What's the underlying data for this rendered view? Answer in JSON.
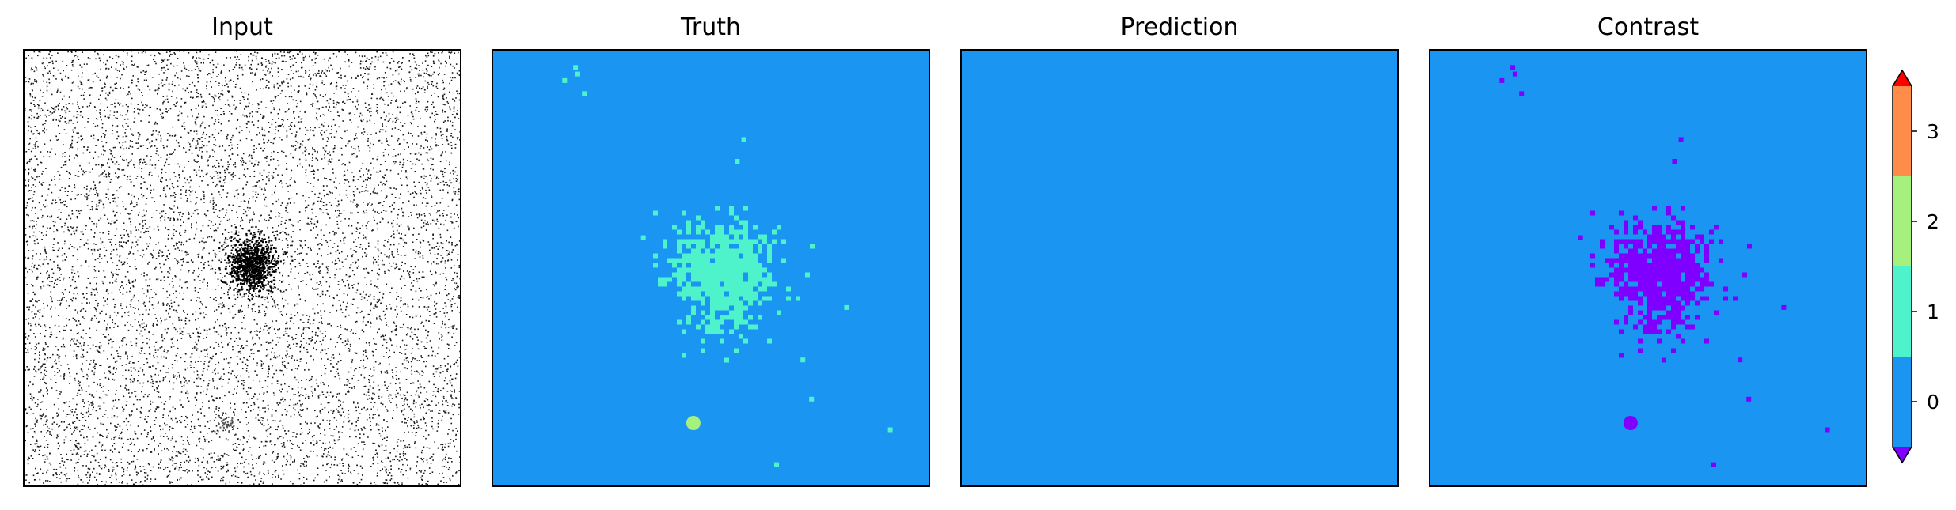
{
  "figure": {
    "panels": [
      {
        "title": "Input"
      },
      {
        "title": "Truth"
      },
      {
        "title": "Prediction"
      },
      {
        "title": "Contrast"
      }
    ]
  },
  "colors": {
    "background": "#1b95f2",
    "class1": "#4ef2cb",
    "class2": "#a6f07e",
    "class3": "#ff8c48",
    "contrast_mark": "#8000ff",
    "over": "#ff0000",
    "under": "#8000ff",
    "axes_edge": "#000000",
    "noise_dot": "#1a1a1a"
  },
  "chart_data": [
    {
      "type": "heatmap",
      "title": "Input",
      "description_of_values": "grayscale noisy detector image; dense dark cluster near center",
      "cluster_center": [
        0.52,
        0.49
      ]
    },
    {
      "type": "heatmap",
      "title": "Truth",
      "classes": [
        0,
        1,
        2
      ],
      "features": {
        "cluster": {
          "class": 1,
          "center": [
            0.52,
            0.51
          ]
        },
        "blob": {
          "class": 2,
          "center": [
            0.46,
            0.855
          ]
        },
        "scattered_points_class": 1
      }
    },
    {
      "type": "heatmap",
      "title": "Prediction",
      "classes": [
        0
      ],
      "uniform_class": 0
    },
    {
      "type": "heatmap",
      "title": "Contrast",
      "classes": [
        -1,
        0
      ],
      "features": {
        "cluster": {
          "class": -1,
          "center": [
            0.52,
            0.51
          ]
        },
        "blob": {
          "class": -1,
          "center": [
            0.46,
            0.855
          ]
        }
      }
    }
  ],
  "colorbar": {
    "ticks": [
      "0",
      "1",
      "2",
      "3"
    ],
    "levels": [
      -0.5,
      0.5,
      1.5,
      2.5,
      3.5
    ],
    "extend": "both"
  }
}
